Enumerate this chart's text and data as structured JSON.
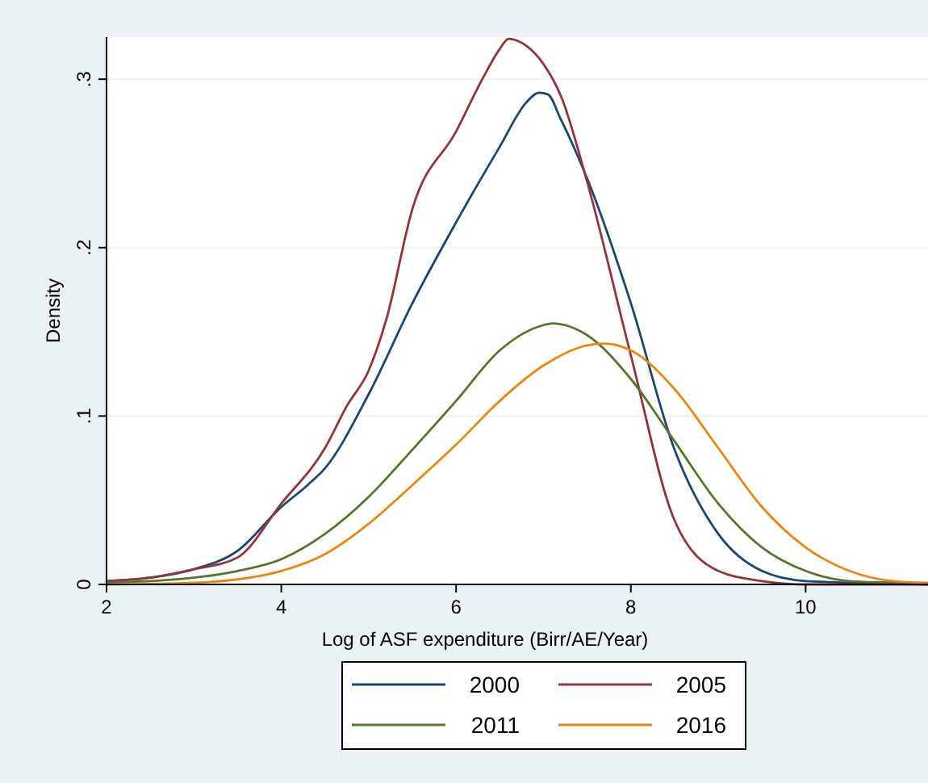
{
  "chart_data": {
    "type": "line",
    "xlabel": "Log of ASF expenditure (Birr/AE/Year)",
    "ylabel": "Density",
    "xlim": [
      2,
      11.4
    ],
    "ylim": [
      0,
      0.325
    ],
    "xticks": [
      2,
      4,
      6,
      8,
      10
    ],
    "yticks": [
      0,
      {
        "value": 0.1,
        "label": ".1"
      },
      {
        "value": 0.2,
        "label": ".2"
      },
      {
        "value": 0.3,
        "label": ".3"
      }
    ],
    "grid": "y",
    "legend": "bottom",
    "series": [
      {
        "name": "2000",
        "color": "#1a476f",
        "x": [
          2,
          2.5,
          3,
          3.5,
          4,
          4.3,
          4.5,
          5,
          5.5,
          6,
          6.5,
          6.8,
          6.95,
          7.05,
          7.2,
          7.5,
          8,
          8.5,
          9,
          9.5,
          10,
          11.4
        ],
        "values": [
          0.002,
          0.004,
          0.009,
          0.02,
          0.046,
          0.059,
          0.069,
          0.113,
          0.167,
          0.215,
          0.26,
          0.286,
          0.292,
          0.291,
          0.276,
          0.241,
          0.167,
          0.08,
          0.03,
          0.008,
          0.002,
          0
        ]
      },
      {
        "name": "2005",
        "color": "#90353b",
        "x": [
          2,
          2.5,
          3,
          3.5,
          4,
          4.5,
          4.75,
          5,
          5.2,
          5.5,
          6,
          6.3,
          6.5,
          6.6,
          6.8,
          7,
          7.2,
          7.5,
          8,
          8.5,
          9,
          9.5,
          10,
          11.4
        ],
        "values": [
          0.002,
          0.004,
          0.009,
          0.016,
          0.048,
          0.081,
          0.106,
          0.127,
          0.157,
          0.223,
          0.269,
          0.3,
          0.318,
          0.324,
          0.32,
          0.309,
          0.29,
          0.239,
          0.136,
          0.038,
          0.008,
          0.002,
          0,
          0
        ]
      },
      {
        "name": "2011",
        "color": "#55752f",
        "x": [
          2,
          3,
          3.5,
          4,
          4.5,
          5,
          5.5,
          6,
          6.5,
          7,
          7.1,
          7.5,
          8,
          8.5,
          9,
          9.5,
          10,
          10.5,
          11,
          11.4
        ],
        "values": [
          0.001,
          0.004,
          0.008,
          0.015,
          0.03,
          0.052,
          0.08,
          0.109,
          0.139,
          0.154,
          0.155,
          0.148,
          0.122,
          0.085,
          0.048,
          0.022,
          0.008,
          0.002,
          0.001,
          0
        ]
      },
      {
        "name": "2016",
        "color": "#e8870e",
        "x": [
          2,
          3,
          3.5,
          4,
          4.5,
          5,
          5.5,
          6,
          6.5,
          7,
          7.5,
          7.7,
          8,
          8.5,
          9,
          9.5,
          10,
          10.5,
          11,
          11.4
        ],
        "values": [
          0,
          0.001,
          0.003,
          0.008,
          0.018,
          0.036,
          0.059,
          0.083,
          0.109,
          0.13,
          0.142,
          0.143,
          0.139,
          0.116,
          0.081,
          0.046,
          0.022,
          0.008,
          0.002,
          0.001
        ]
      }
    ]
  }
}
